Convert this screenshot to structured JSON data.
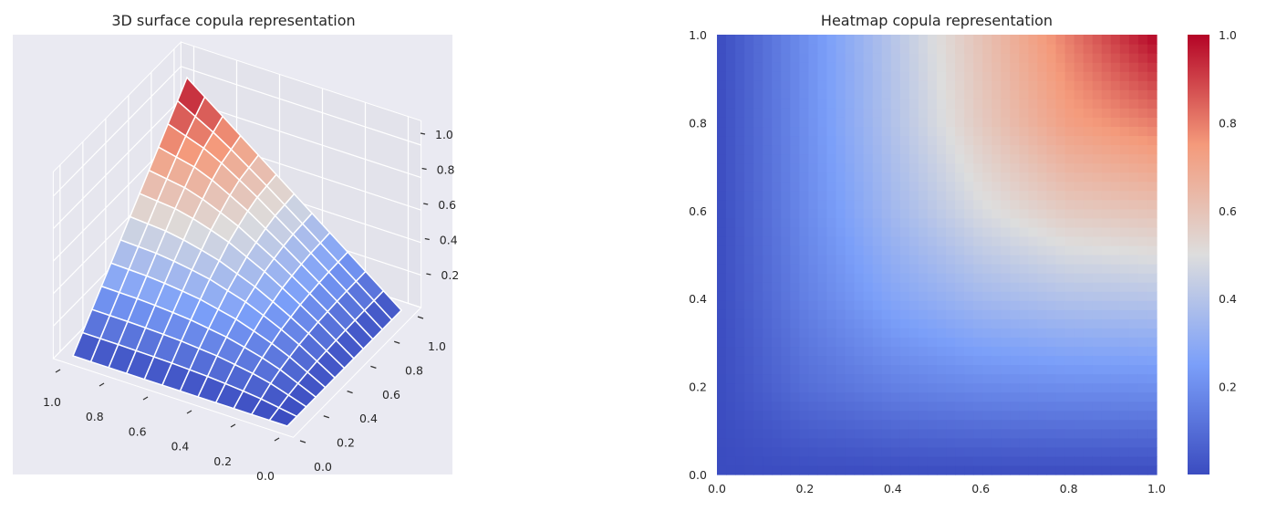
{
  "chart_data": [
    {
      "type": "surface3d",
      "title": "3D surface copula representation",
      "colormap": "coolwarm",
      "background": "#eaeaf2",
      "grid": true,
      "u": [
        0.0,
        0.2,
        0.4,
        0.6,
        0.8,
        1.0
      ],
      "v": [
        0.0,
        0.2,
        0.4,
        0.6,
        0.8,
        1.0
      ],
      "z": [
        [
          0,
          0,
          0,
          0,
          0,
          0
        ],
        [
          0,
          0.103,
          0.157,
          0.185,
          0.197,
          0.2
        ],
        [
          0,
          0.157,
          0.274,
          0.35,
          0.389,
          0.4
        ],
        [
          0,
          0.185,
          0.35,
          0.486,
          0.573,
          0.6
        ],
        [
          0,
          0.197,
          0.389,
          0.573,
          0.729,
          0.8
        ],
        [
          0,
          0.2,
          0.4,
          0.6,
          0.8,
          1.0
        ]
      ],
      "x_ticks": [
        "1.0",
        "0.8",
        "0.6",
        "0.4",
        "0.2",
        "0.0"
      ],
      "y_ticks": [
        "0.0",
        "0.2",
        "0.4",
        "0.6",
        "0.8",
        "1.0"
      ],
      "z_ticks": [
        "0.2",
        "0.4",
        "0.6",
        "0.8",
        "1.0"
      ],
      "xlim": [
        0,
        1
      ],
      "ylim": [
        0,
        1
      ],
      "zlim": [
        0,
        1
      ]
    },
    {
      "type": "heatmap",
      "title": "Heatmap copula representation",
      "colormap": "coolwarm",
      "x_ticks": [
        "0.0",
        "0.2",
        "0.4",
        "0.6",
        "0.8",
        "1.0"
      ],
      "y_ticks": [
        "0.0",
        "0.2",
        "0.4",
        "0.6",
        "0.8",
        "1.0"
      ],
      "colorbar_ticks": [
        "0.2",
        "0.4",
        "0.6",
        "0.8",
        "1.0"
      ],
      "xlim": [
        0,
        1
      ],
      "ylim": [
        0,
        1
      ],
      "clim": [
        0,
        1
      ]
    }
  ],
  "colors": {
    "coolwarm": [
      "#3b4cc0",
      "#7b9ff9",
      "#dddddd",
      "#f49a7b",
      "#b40426"
    ]
  }
}
